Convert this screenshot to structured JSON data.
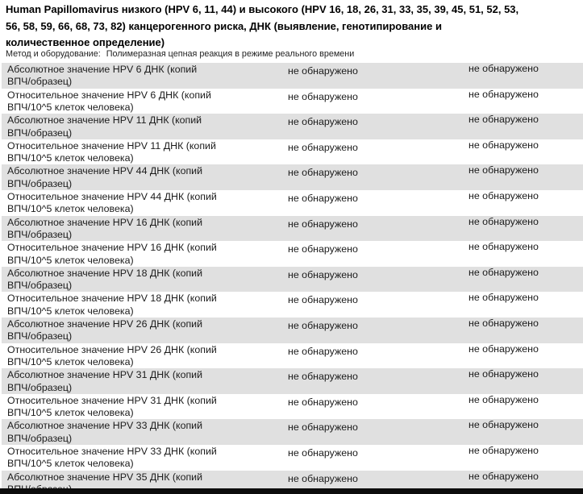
{
  "header": {
    "title_lines": [
      "Human Papillomavirus низкого (HPV 6, 11, 44) и высокого (HPV 16, 18, 26, 31, 33, 35, 39, 45, 51, 52, 53,",
      "56, 58, 59, 66, 68, 73, 82) канцерогенного риска, ДНК (выявление, генотипирование и",
      "количественное определение)"
    ],
    "method_label": "Метод и оборудование:",
    "method_value": "Полимеразная цепная реакция в режиме реального времени"
  },
  "table": {
    "rows": [
      {
        "label_line1": "Абсолютное значение HPV 6 ДНК (копий",
        "label_line2": "ВПЧ/образец)",
        "result": "не обнаружено",
        "reference": "не обнаружено",
        "shaded": true
      },
      {
        "label_line1": "Относительное значение HPV 6 ДНК (копий",
        "label_line2": "ВПЧ/10^5 клеток человека)",
        "result": "не обнаружено",
        "reference": "не обнаружено",
        "shaded": false
      },
      {
        "label_line1": "Абсолютное значение HPV 11 ДНК (копий",
        "label_line2": "ВПЧ/образец)",
        "result": "не обнаружено",
        "reference": "не обнаружено",
        "shaded": true
      },
      {
        "label_line1": "Относительное значение HPV 11 ДНК (копий",
        "label_line2": "ВПЧ/10^5 клеток человека)",
        "result": "не обнаружено",
        "reference": "не обнаружено",
        "shaded": false
      },
      {
        "label_line1": "Абсолютное значение HPV 44 ДНК (копий",
        "label_line2": "ВПЧ/образец)",
        "result": "не обнаружено",
        "reference": "не обнаружено",
        "shaded": true
      },
      {
        "label_line1": "Относительное значение HPV 44 ДНК (копий",
        "label_line2": "ВПЧ/10^5 клеток человека)",
        "result": "не обнаружено",
        "reference": "не обнаружено",
        "shaded": false
      },
      {
        "label_line1": "Абсолютное значение HPV 16 ДНК (копий",
        "label_line2": "ВПЧ/образец)",
        "result": "не обнаружено",
        "reference": "не обнаружено",
        "shaded": true
      },
      {
        "label_line1": "Относительное значение HPV 16 ДНК (копий",
        "label_line2": "ВПЧ/10^5 клеток человека)",
        "result": "не обнаружено",
        "reference": "не обнаружено",
        "shaded": false
      },
      {
        "label_line1": "Абсолютное значение HPV 18 ДНК (копий",
        "label_line2": "ВПЧ/образец)",
        "result": "не обнаружено",
        "reference": "не обнаружено",
        "shaded": true
      },
      {
        "label_line1": "Относительное значение HPV 18 ДНК (копий",
        "label_line2": "ВПЧ/10^5 клеток человека)",
        "result": "не обнаружено",
        "reference": "не обнаружено",
        "shaded": false
      },
      {
        "label_line1": "Абсолютное значение HPV 26 ДНК (копий",
        "label_line2": "ВПЧ/образец)",
        "result": "не обнаружено",
        "reference": "не обнаружено",
        "shaded": true
      },
      {
        "label_line1": "Относительное значение HPV 26 ДНК (копий",
        "label_line2": "ВПЧ/10^5 клеток человека)",
        "result": "не обнаружено",
        "reference": "не обнаружено",
        "shaded": false
      },
      {
        "label_line1": "Абсолютное значение HPV 31 ДНК (копий",
        "label_line2": "ВПЧ/образец)",
        "result": "не обнаружено",
        "reference": "не обнаружено",
        "shaded": true
      },
      {
        "label_line1": "Относительное значение HPV 31 ДНК (копий",
        "label_line2": "ВПЧ/10^5 клеток человека)",
        "result": "не обнаружено",
        "reference": "не обнаружено",
        "shaded": false
      },
      {
        "label_line1": "Абсолютное значение HPV 33 ДНК (копий",
        "label_line2": "ВПЧ/образец)",
        "result": "не обнаружено",
        "reference": "не обнаружено",
        "shaded": true
      },
      {
        "label_line1": "Относительное значение HPV 33 ДНК (копий",
        "label_line2": "ВПЧ/10^5 клеток человека)",
        "result": "не обнаружено",
        "reference": "не обнаружено",
        "shaded": false
      },
      {
        "label_line1": "Абсолютное значение HPV 35 ДНК (копий",
        "label_line2": "ВПЧ/образец)",
        "result": "не обнаружено",
        "reference": "не обнаружено",
        "shaded": true
      }
    ]
  },
  "colors": {
    "row_shade": "#e0e0e0",
    "bottom_bar": "#0c0c0c"
  }
}
